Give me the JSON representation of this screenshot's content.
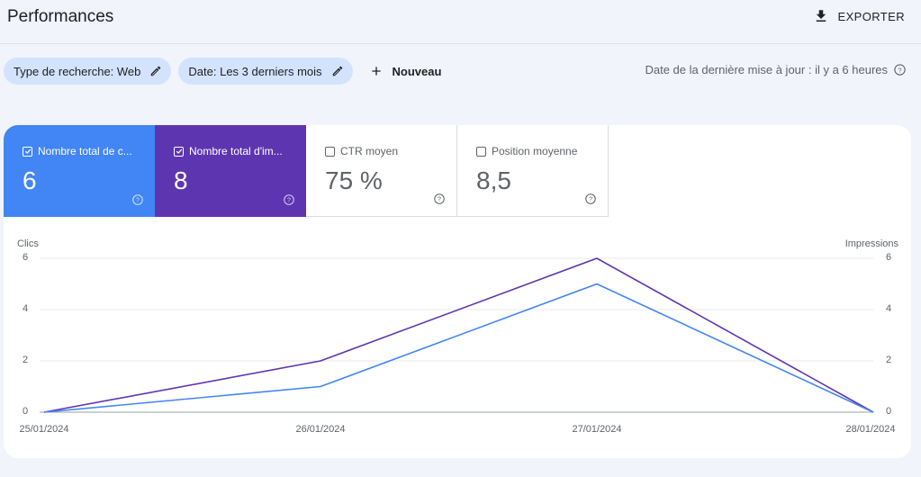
{
  "header": {
    "title": "Performances",
    "export_label": "EXPORTER"
  },
  "filters": {
    "search_type": "Type de recherche: Web",
    "date": "Date: Les 3 derniers mois",
    "new_label": "Nouveau",
    "update_info": "Date de la dernière mise à jour : il y a 6 heures"
  },
  "metrics": [
    {
      "label": "Nombre total de c...",
      "value": "6",
      "checked": true,
      "color": "#4285f4"
    },
    {
      "label": "Nombre total d'im...",
      "value": "8",
      "checked": true,
      "color": "#5e35b1"
    },
    {
      "label": "CTR moyen",
      "value": "75 %",
      "checked": false
    },
    {
      "label": "Position moyenne",
      "value": "8,5",
      "checked": false
    }
  ],
  "chart_data": {
    "type": "line",
    "x": [
      "25/01/2024",
      "26/01/2024",
      "27/01/2024",
      "28/01/2024"
    ],
    "ylabel_left": "Clics",
    "ylabel_right": "Impressions",
    "y_ticks": [
      0,
      2,
      4,
      6
    ],
    "ylim": [
      0,
      6
    ],
    "grid": true,
    "series": [
      {
        "name": "Clics",
        "values": [
          0,
          1,
          5,
          0
        ],
        "color": "#4285f4"
      },
      {
        "name": "Impressions",
        "values": [
          0,
          2,
          6,
          0
        ],
        "color": "#5e35b1"
      }
    ]
  }
}
